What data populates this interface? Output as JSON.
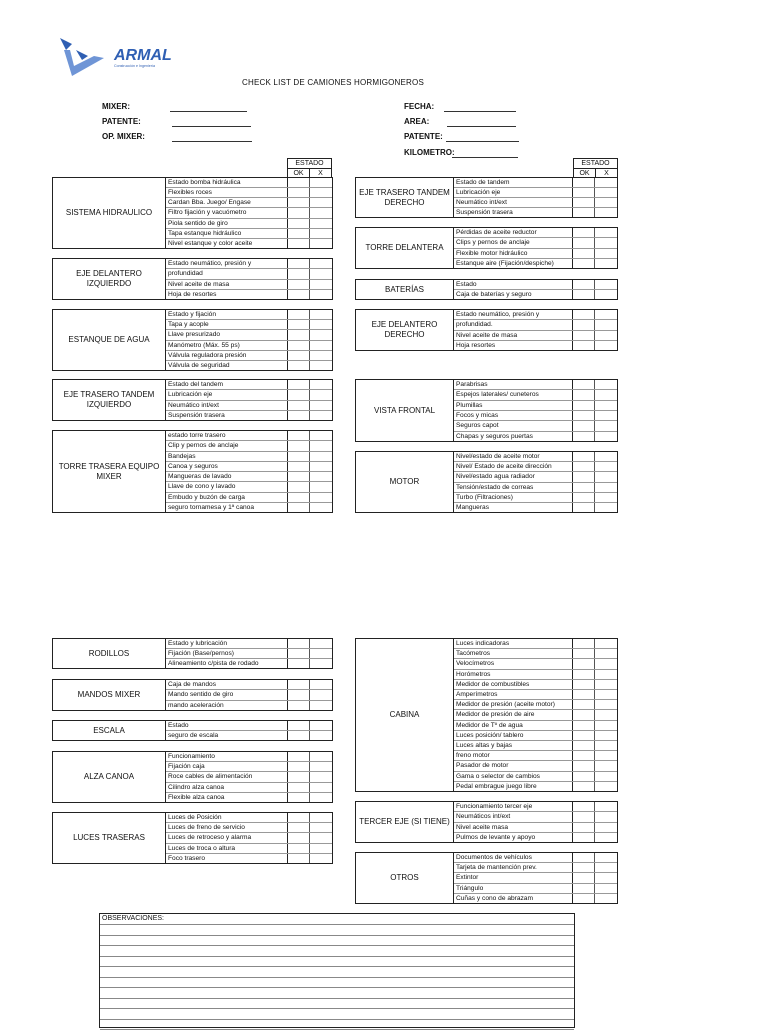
{
  "logo": {
    "name": "ARMAL",
    "tagline": "Construcción e Ingeniería",
    "color": "#2f5fb3"
  },
  "title": "CHECK LIST DE CAMIONES HORMIGONEROS",
  "fields_left": [
    {
      "label": "MIXER:",
      "value": ""
    },
    {
      "label": "PATENTE:",
      "value": ""
    },
    {
      "label": "OP. MIXER:",
      "value": ""
    }
  ],
  "fields_right": [
    {
      "label": "FECHA:",
      "value": ""
    },
    {
      "label": "AREA:",
      "value": ""
    },
    {
      "label": "PATENTE:",
      "value": ""
    },
    {
      "label": "KILOMETRO:",
      "value": ""
    }
  ],
  "estado": {
    "title": "ESTADO",
    "ok": "OK",
    "x": "X"
  },
  "sections_left": [
    {
      "label": "SISTEMA HIDRAULICO",
      "items": [
        "Estado bomba hidráulica",
        "Flexibles roces",
        "Cardan Bba. Juego/ Engase",
        "Filtro fijación y vacuómetro",
        "Piola sentido de giro",
        "Tapa estanque hidráulico",
        "Nivel estanque y color aceite"
      ]
    },
    {
      "label": "EJE DELANTERO IZQUIERDO",
      "items": [
        "Estado neumático, presión y",
        "profundidad",
        "Nivel aceite de masa",
        "Hoja de resortes"
      ]
    },
    {
      "label": "ESTANQUE DE AGUA",
      "items": [
        "Estado y fijación",
        "Tapa y acople",
        "Llave presurizado",
        "Manómetro (Máx. 55 ps)",
        "Válvula reguladora presión",
        "Válvula de seguridad"
      ]
    },
    {
      "label": "EJE TRASERO TANDEM IZQUIERDO",
      "items": [
        "Estado del tandem",
        "Lubricación eje",
        "Neumático int/ext",
        "Suspensión trasera"
      ]
    },
    {
      "label": "TORRE TRASERA EQUIPO MIXER",
      "items": [
        "estado torre trasero",
        "Clip y pernos de anclaje",
        "Bandejas",
        "Canoa y seguros",
        "Mangueras de lavado",
        "Llave de cono y lavado",
        "Embudo y buzón de carga",
        "seguro tornamesa y 1ª canoa"
      ]
    },
    {
      "label": "RODILLOS",
      "items": [
        "Estado y lubricación",
        "Fijación (Base/pernos)",
        "Alineamiento c/pista de rodado"
      ]
    },
    {
      "label": "MANDOS MIXER",
      "items": [
        "Caja de mandos",
        "Mando sentido de giro",
        "mando aceleración"
      ]
    },
    {
      "label": "ESCALA",
      "items": [
        "Estado",
        "seguro de escala"
      ]
    },
    {
      "label": "ALZA CANOA",
      "items": [
        "Funcionamiento",
        "Fijación caja",
        "Roce cables de alimentación",
        "Cilindro alza canoa",
        "Flexible alza canoa"
      ]
    },
    {
      "label": "LUCES TRASERAS",
      "items": [
        "Luces de Posición",
        "Luces de freno de servicio",
        "Luces de retroceso y alarma",
        "Luces de troca o altura",
        "Foco trasero"
      ]
    }
  ],
  "sections_right": [
    {
      "label": "EJE TRASERO TANDEM DERECHO",
      "items": [
        "Estado de tandem",
        "Lubricación eje",
        "Neumático int/ext",
        "Suspensión trasera"
      ]
    },
    {
      "label": "TORRE DELANTERA",
      "items": [
        "Pérdidas de aceite reductor",
        "Clips y pernos de anclaje",
        "Flexible motor hidráulico",
        "Estanque aire (Fijación/despiche)"
      ]
    },
    {
      "label": "BATERÍAS",
      "items": [
        "Estado",
        "Caja de baterías y seguro"
      ]
    },
    {
      "label": "EJE DELANTERO DERECHO",
      "items": [
        "Estado neumático, presión y",
        "profundidad.",
        "Nivel aceite de masa",
        "Hoja resortes"
      ]
    },
    {
      "label": "VISTA FRONTAL",
      "items": [
        "Parabrisas",
        "Espejos laterales/ cuneteros",
        "Plumillas",
        "Focos y micas",
        "Seguros capot",
        "Chapas y seguros puertas"
      ]
    },
    {
      "label": "MOTOR",
      "items": [
        "Nivel/estado de aceite motor",
        "Nivel/ Estado de aceite dirección",
        "Nivel/estado agua radiador",
        "Tensión/estado de correas",
        "Turbo (Filtraciones)",
        "Mangueras"
      ]
    },
    {
      "label": "CABINA",
      "items": [
        "Luces indicadoras",
        "Tacómetros",
        "Velocímetros",
        "Horómetros",
        "Medidor de combustibles",
        "Amperímetros",
        "Medidor de presión (aceite motor)",
        "Medidor de presión de aire",
        "Medidor de Tº de agua",
        "Luces posición/ tablero",
        "Luces altas y bajas",
        "freno motor",
        "Pasador de motor",
        "Gama o selector de cambios",
        "Pedal embrague juego libre"
      ]
    },
    {
      "label": "TERCER EJE (SI TIENE)",
      "items": [
        "Funcionamiento tercer eje",
        "Neumáticos int/ext",
        "Nivel aceite masa",
        "Pulmos de levante y apoyo"
      ]
    },
    {
      "label": "OTROS",
      "items": [
        "Documentos de vehículos",
        "Tarjeta de mantención prev.",
        "Extintor",
        "Triángulo",
        "Cuñas y cono de abrazam"
      ]
    }
  ],
  "observaciones": {
    "label": "OBSERVACIONES:"
  }
}
